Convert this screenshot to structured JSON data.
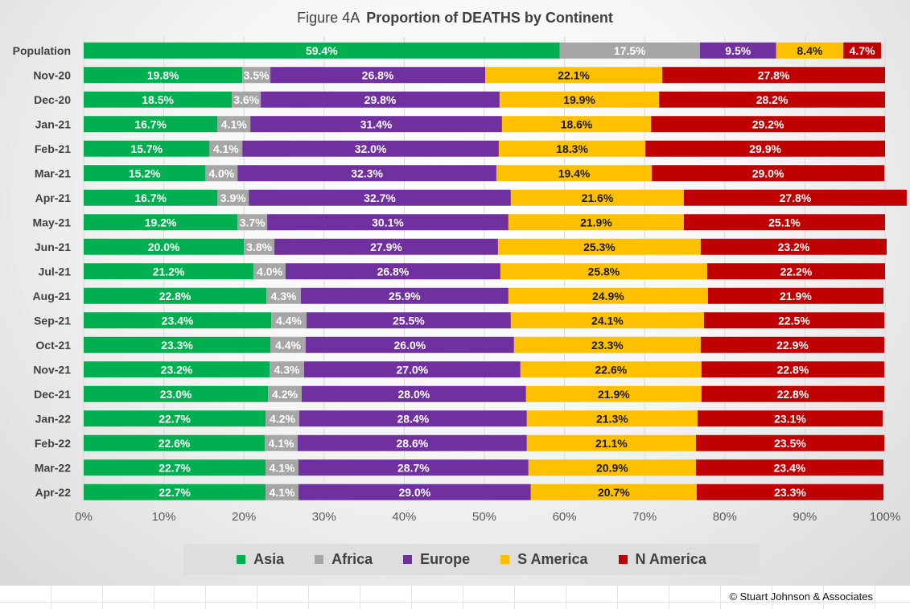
{
  "title": {
    "prefix": "Figure  4A",
    "main": "Proportion of DEATHS by Continent"
  },
  "copyright": "© Stuart Johnson & Associates",
  "chart_data": {
    "type": "bar",
    "orientation": "horizontal",
    "stacked": "percent",
    "categories": [
      "Population",
      "Nov-20",
      "Dec-20",
      "Jan-21",
      "Feb-21",
      "Mar-21",
      "Apr-21",
      "May-21",
      "Jun-21",
      "Jul-21",
      "Aug-21",
      "Sep-21",
      "Oct-21",
      "Nov-21",
      "Dec-21",
      "Jan-22",
      "Feb-22",
      "Mar-22",
      "Apr-22"
    ],
    "xlim": [
      0,
      100
    ],
    "xticks": [
      "0%",
      "10%",
      "20%",
      "30%",
      "40%",
      "50%",
      "60%",
      "70%",
      "80%",
      "90%",
      "100%"
    ],
    "grid": true,
    "legend_position": "bottom",
    "series": [
      {
        "name": "Asia",
        "color": "#00b050",
        "label_color": "#ffffff",
        "values": [
          59.4,
          19.8,
          18.5,
          16.7,
          15.7,
          15.2,
          16.7,
          19.2,
          20.0,
          21.2,
          22.8,
          23.4,
          23.3,
          23.2,
          23.0,
          22.7,
          22.6,
          22.7,
          22.7
        ]
      },
      {
        "name": "Africa",
        "color": "#a6a6a6",
        "label_color": "#ffffff",
        "values": [
          17.5,
          3.5,
          3.6,
          4.1,
          4.1,
          4.0,
          3.9,
          3.7,
          3.8,
          4.0,
          4.3,
          4.4,
          4.4,
          4.3,
          4.2,
          4.2,
          4.1,
          4.1,
          4.1
        ]
      },
      {
        "name": "Europe",
        "color": "#7030a0",
        "label_color": "#ffffff",
        "values": [
          9.5,
          26.8,
          29.8,
          31.4,
          32.0,
          32.3,
          32.7,
          30.1,
          27.9,
          26.8,
          25.9,
          25.5,
          26.0,
          27.0,
          28.0,
          28.4,
          28.6,
          28.7,
          29.0
        ]
      },
      {
        "name": "S America",
        "color": "#ffc000",
        "label_color": "#1a1a1a",
        "values": [
          8.4,
          22.1,
          19.9,
          18.6,
          18.3,
          19.4,
          21.6,
          21.9,
          25.3,
          25.8,
          24.9,
          24.1,
          23.3,
          22.6,
          21.9,
          21.3,
          21.1,
          20.9,
          20.7
        ]
      },
      {
        "name": "N America",
        "color": "#c00000",
        "label_color": "#ffffff",
        "values": [
          4.7,
          27.8,
          28.2,
          29.2,
          29.9,
          29.0,
          27.8,
          25.1,
          23.2,
          22.2,
          21.9,
          22.5,
          22.9,
          22.8,
          22.8,
          23.1,
          23.5,
          23.4,
          23.3
        ]
      }
    ]
  }
}
